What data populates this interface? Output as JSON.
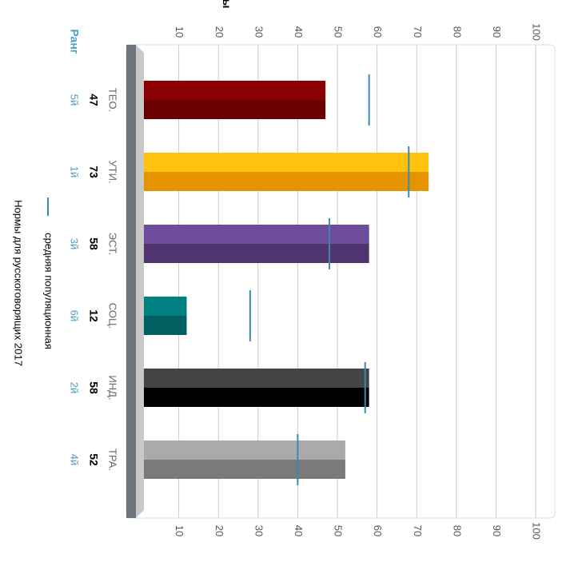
{
  "chart_data": {
    "type": "bar",
    "orientation": "rotated-90-clockwise",
    "categories": [
      "ТЕО.",
      "УТИ.",
      "ЭСТ.",
      "СОЦ.",
      "ИНД.",
      "ТРА."
    ],
    "values": [
      47,
      73,
      58,
      12,
      58,
      52
    ],
    "population_average": [
      58,
      68,
      48,
      28,
      57,
      40
    ],
    "ranks": [
      "5й",
      "1й",
      "3й",
      "6й",
      "2й",
      "4й"
    ],
    "row_labels": {
      "scores": "Баллы",
      "ranks": "Ранг"
    },
    "ticks": [
      10,
      20,
      30,
      40,
      50,
      60,
      70,
      80,
      90,
      100
    ],
    "ylim": [
      0,
      100
    ],
    "grid": true,
    "legend": {
      "position": "bottom",
      "entry": "средняя популяционная"
    },
    "caption": "Нормы для русскоговорящих 2017",
    "colors": {
      "bars": [
        [
          "#8b0000",
          "#6b0000"
        ],
        [
          "#ffc20e",
          "#e59400"
        ],
        [
          "#6d4c9b",
          "#4f346f"
        ],
        [
          "#008080",
          "#005f60"
        ],
        [
          "#444444",
          "#000000"
        ],
        [
          "#aaaaaa",
          "#7a7a7a"
        ]
      ],
      "average_line": "#3a8ab0",
      "rank_text": "#4a9ec4",
      "axis_band": "#6c757d",
      "grid": "#cccccc"
    }
  }
}
